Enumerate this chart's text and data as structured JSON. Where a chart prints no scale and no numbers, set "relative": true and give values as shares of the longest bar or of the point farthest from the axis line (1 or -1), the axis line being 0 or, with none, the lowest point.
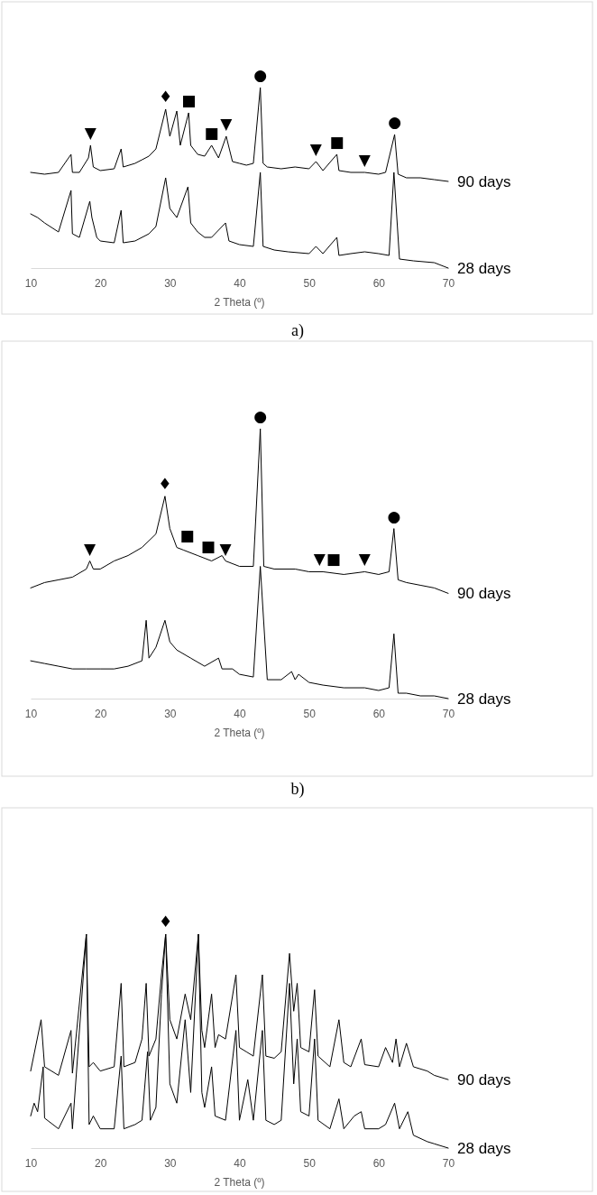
{
  "chart_data": [
    {
      "type": "line",
      "relative": true,
      "xlabel": "2 Theta (º)",
      "xlim": [
        10,
        70
      ],
      "xticks": [
        10,
        20,
        30,
        40,
        50,
        60,
        70
      ],
      "series": [
        {
          "name": "90 days",
          "color": "#000000",
          "x": [
            10,
            12,
            14,
            15.8,
            16,
            17,
            18.3,
            18.6,
            19,
            20,
            22,
            23,
            23.3,
            25,
            26,
            27,
            28,
            29.4,
            30,
            31,
            31.5,
            32.7,
            33,
            34,
            35,
            36,
            37,
            38.1,
            39,
            40,
            41,
            42,
            43,
            43.4,
            44,
            46,
            48,
            50,
            51,
            52,
            54,
            54.3,
            56,
            58,
            60,
            61,
            62.3,
            62.8,
            64,
            66,
            68,
            70
          ],
          "values": [
            0.53,
            0.52,
            0.53,
            0.63,
            0.53,
            0.53,
            0.61,
            0.68,
            0.56,
            0.54,
            0.55,
            0.66,
            0.56,
            0.58,
            0.6,
            0.62,
            0.66,
            0.88,
            0.73,
            0.87,
            0.68,
            0.86,
            0.68,
            0.63,
            0.62,
            0.68,
            0.61,
            0.73,
            0.59,
            0.58,
            0.57,
            0.58,
            1.0,
            0.58,
            0.56,
            0.55,
            0.56,
            0.55,
            0.59,
            0.54,
            0.63,
            0.54,
            0.53,
            0.53,
            0.52,
            0.53,
            0.74,
            0.52,
            0.5,
            0.5,
            0.49,
            0.48
          ]
        },
        {
          "name": "28 days",
          "color": "#000000",
          "x": [
            10,
            11,
            12,
            14,
            15.8,
            16,
            17,
            18.5,
            18.8,
            19.5,
            20,
            22,
            23,
            23.3,
            25,
            27,
            28,
            29.4,
            30,
            31,
            32.6,
            33,
            34,
            35,
            36,
            38,
            38.5,
            40,
            42,
            43,
            43.4,
            45,
            47,
            50,
            51,
            52,
            54,
            54.3,
            56,
            58,
            60,
            61.5,
            62.2,
            63,
            65,
            68,
            70
          ],
          "values": [
            0.3,
            0.28,
            0.25,
            0.2,
            0.43,
            0.19,
            0.17,
            0.37,
            0.28,
            0.17,
            0.15,
            0.14,
            0.32,
            0.14,
            0.15,
            0.19,
            0.23,
            0.5,
            0.33,
            0.28,
            0.45,
            0.25,
            0.2,
            0.17,
            0.17,
            0.25,
            0.15,
            0.13,
            0.12,
            0.53,
            0.12,
            0.1,
            0.09,
            0.08,
            0.12,
            0.08,
            0.17,
            0.07,
            0.08,
            0.09,
            0.08,
            0.07,
            0.53,
            0.05,
            0.04,
            0.03,
            0.0
          ]
        }
      ],
      "annotations": [
        {
          "text": "▼",
          "x": 18.6,
          "y": 0.68
        },
        {
          "text": "♦",
          "x": 29.4,
          "y": 0.88
        },
        {
          "text": "■",
          "x": 32.7,
          "y": 0.86
        },
        {
          "text": "■",
          "x": 36,
          "y": 0.68
        },
        {
          "text": "▼",
          "x": 38.1,
          "y": 0.73
        },
        {
          "text": "●",
          "x": 43,
          "y": 1.0
        },
        {
          "text": "▼",
          "x": 51,
          "y": 0.59
        },
        {
          "text": "■",
          "x": 54,
          "y": 0.63
        },
        {
          "text": "▼",
          "x": 58,
          "y": 0.53
        },
        {
          "text": "●",
          "x": 62.3,
          "y": 0.74
        },
        "a)"
      ]
    },
    {
      "type": "line",
      "relative": true,
      "xlabel": "2 Theta (º)",
      "xlim": [
        10,
        70
      ],
      "xticks": [
        10,
        20,
        30,
        40,
        50,
        60,
        70
      ],
      "series": [
        {
          "name": "90 days",
          "color": "#000000",
          "x": [
            10,
            12,
            14,
            16,
            18,
            18.5,
            19,
            20,
            22,
            24,
            26,
            28,
            29.3,
            30,
            31,
            32,
            34,
            36,
            37.5,
            38,
            40,
            42,
            43,
            43.5,
            45,
            48,
            50,
            52,
            55,
            58,
            60,
            61.5,
            62.2,
            62.8,
            64,
            66,
            68,
            70
          ],
          "values": [
            0.41,
            0.43,
            0.44,
            0.45,
            0.48,
            0.51,
            0.48,
            0.48,
            0.51,
            0.53,
            0.56,
            0.61,
            0.75,
            0.63,
            0.56,
            0.55,
            0.53,
            0.51,
            0.53,
            0.51,
            0.49,
            0.49,
            1.0,
            0.49,
            0.48,
            0.48,
            0.47,
            0.47,
            0.46,
            0.47,
            0.46,
            0.47,
            0.63,
            0.44,
            0.43,
            0.42,
            0.41,
            0.39
          ]
        },
        {
          "name": "28 days",
          "color": "#000000",
          "x": [
            10,
            12,
            14,
            16,
            18,
            20,
            22,
            24,
            26,
            26.6,
            27,
            28,
            29.3,
            30,
            31,
            33,
            35,
            37,
            37.5,
            39,
            40,
            42,
            43,
            44,
            46,
            47.5,
            48,
            48.5,
            50,
            52,
            55,
            58,
            60,
            61.5,
            62.2,
            62.8,
            64,
            66,
            68,
            70
          ],
          "values": [
            0.14,
            0.13,
            0.12,
            0.11,
            0.11,
            0.11,
            0.11,
            0.12,
            0.14,
            0.29,
            0.15,
            0.19,
            0.29,
            0.21,
            0.18,
            0.15,
            0.12,
            0.15,
            0.11,
            0.11,
            0.09,
            0.08,
            0.49,
            0.07,
            0.07,
            0.1,
            0.07,
            0.09,
            0.06,
            0.05,
            0.04,
            0.04,
            0.03,
            0.04,
            0.24,
            0.02,
            0.02,
            0.01,
            0.01,
            0.0
          ]
        }
      ],
      "annotations": [
        {
          "text": "▼",
          "x": 18.5,
          "y": 0.51
        },
        {
          "text": "♦",
          "x": 29.3,
          "y": 0.75
        },
        {
          "text": "■",
          "x": 32.5,
          "y": 0.56
        },
        {
          "text": "■",
          "x": 35.5,
          "y": 0.52
        },
        {
          "text": "▼",
          "x": 38,
          "y": 0.51
        },
        {
          "text": "●",
          "x": 43,
          "y": 1.0
        },
        {
          "text": "▼",
          "x": 51.5,
          "y": 0.47
        },
        {
          "text": "■",
          "x": 53.5,
          "y": 0.47
        },
        {
          "text": "▼",
          "x": 58,
          "y": 0.47
        },
        {
          "text": "●",
          "x": 62.2,
          "y": 0.63
        },
        "b)"
      ]
    },
    {
      "type": "line",
      "relative": true,
      "xlabel": "2 Theta (º)",
      "xlim": [
        10,
        70
      ],
      "xticks": [
        10,
        20,
        30,
        40,
        50,
        60,
        70
      ],
      "series": [
        {
          "name": "90 days",
          "color": "#000000",
          "x": [
            10,
            11.5,
            12,
            14,
            15.8,
            16,
            18,
            18.4,
            19,
            20,
            22,
            23,
            23.4,
            25,
            26,
            26.6,
            27,
            28,
            28.8,
            29.4,
            30,
            31,
            32.2,
            33,
            34.1,
            34.6,
            35,
            36,
            36.5,
            37,
            38,
            39.5,
            40,
            41,
            42,
            43.3,
            43.8,
            45,
            46,
            47.2,
            47.8,
            48.3,
            48.8,
            50,
            50.8,
            51.3,
            53,
            54.3,
            55,
            56,
            57.5,
            58,
            60,
            61,
            62,
            62.5,
            63,
            64,
            65,
            67,
            68,
            70
          ],
          "values": [
            0.36,
            0.6,
            0.38,
            0.34,
            0.55,
            0.35,
            1.0,
            0.38,
            0.4,
            0.36,
            0.38,
            0.77,
            0.38,
            0.4,
            0.51,
            0.77,
            0.43,
            0.51,
            0.81,
            1.0,
            0.6,
            0.51,
            0.72,
            0.6,
            1.0,
            0.55,
            0.47,
            0.72,
            0.47,
            0.53,
            0.51,
            0.81,
            0.47,
            0.45,
            0.43,
            0.81,
            0.43,
            0.42,
            0.45,
            0.91,
            0.64,
            0.77,
            0.47,
            0.45,
            0.74,
            0.43,
            0.38,
            0.6,
            0.4,
            0.38,
            0.51,
            0.39,
            0.38,
            0.47,
            0.4,
            0.51,
            0.38,
            0.49,
            0.38,
            0.36,
            0.34,
            0.32
          ]
        },
        {
          "name": "28 days",
          "color": "#000000",
          "x": [
            10,
            10.5,
            11,
            11.8,
            12,
            14,
            15.8,
            16,
            18,
            18.4,
            19,
            20,
            22,
            23,
            23.4,
            25,
            26,
            26.8,
            27.2,
            28,
            28.8,
            29.4,
            30,
            31,
            32.2,
            33,
            34.1,
            34.6,
            35,
            36,
            36.5,
            38,
            39.5,
            40,
            41.2,
            42,
            43.3,
            43.8,
            45,
            46,
            47.2,
            47.8,
            48.3,
            48.8,
            50,
            50.8,
            51.3,
            53,
            54.3,
            55,
            56.5,
            57.5,
            58,
            60,
            61,
            62.3,
            63,
            64.2,
            65,
            67,
            68,
            70
          ],
          "values": [
            0.15,
            0.21,
            0.17,
            0.38,
            0.14,
            0.09,
            0.21,
            0.09,
            1.0,
            0.11,
            0.15,
            0.09,
            0.09,
            0.43,
            0.09,
            0.11,
            0.13,
            0.45,
            0.13,
            0.19,
            0.72,
            1.0,
            0.3,
            0.21,
            0.6,
            0.26,
            1.0,
            0.26,
            0.19,
            0.38,
            0.15,
            0.13,
            0.55,
            0.13,
            0.32,
            0.13,
            0.55,
            0.13,
            0.11,
            0.13,
            0.77,
            0.3,
            0.51,
            0.17,
            0.15,
            0.51,
            0.13,
            0.09,
            0.23,
            0.09,
            0.15,
            0.17,
            0.09,
            0.09,
            0.11,
            0.21,
            0.09,
            0.17,
            0.06,
            0.03,
            0.02,
            0.0
          ]
        }
      ],
      "annotations": [
        {
          "text": "♦",
          "x": 29.4,
          "y": 1.0
        }
      ]
    }
  ]
}
